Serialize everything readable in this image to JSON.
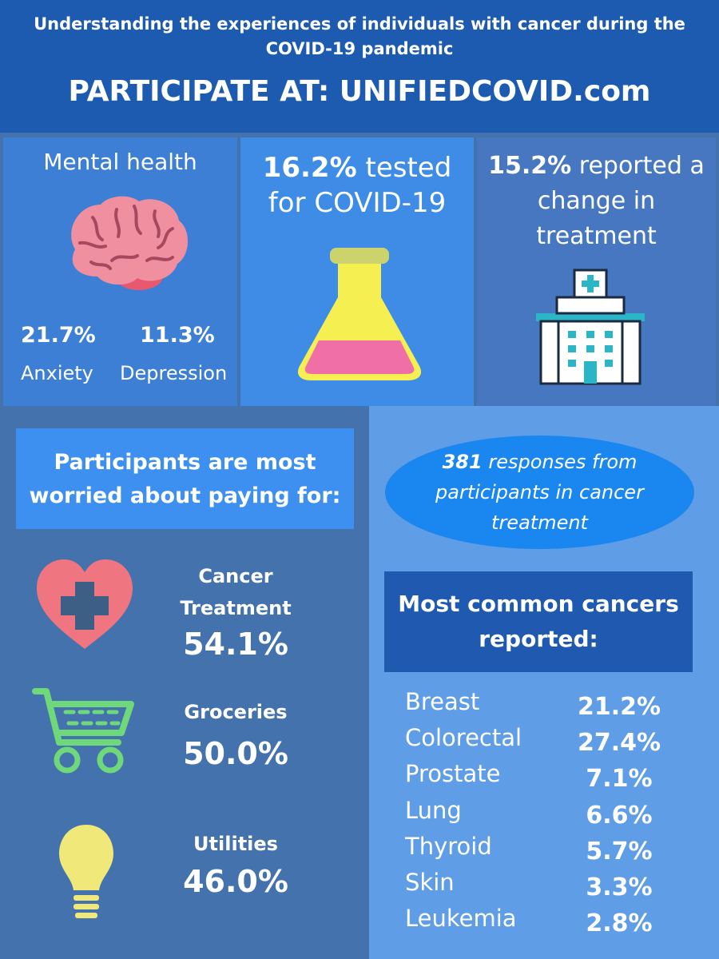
{
  "header": {
    "subtitle": "Understanding the experiences of individuals with cancer during the COVID-19 pandemic",
    "cta": "PARTICIPATE AT: UNIFIEDCOVID.com"
  },
  "mental_health": {
    "title": "Mental health",
    "anxiety_value": "21.7%",
    "anxiety_label": "Anxiety",
    "depression_value": "11.3%",
    "depression_label": "Depression"
  },
  "tested": {
    "value": "16.2%",
    "text_1": "tested",
    "text_2": "for COVID-19"
  },
  "treatment_change": {
    "value": "15.2%",
    "text_1": "reported a",
    "text_2": "change in",
    "text_3": "treatment"
  },
  "worries": {
    "heading_1": "Participants are most",
    "heading_2": "worried about paying for:",
    "items": [
      {
        "label_1": "Cancer",
        "label_2": "Treatment",
        "value": "54.1%"
      },
      {
        "label_1": "Groceries",
        "value": "50.0%"
      },
      {
        "label_1": "Utilities",
        "value": "46.0%"
      }
    ]
  },
  "responses": {
    "count": "381",
    "text_1": "responses from",
    "text_2": "participants in cancer",
    "text_3": "treatment"
  },
  "cancers": {
    "heading_1": "Most common cancers",
    "heading_2": "reported:",
    "rows": [
      {
        "name": "Breast",
        "value": "21.2%"
      },
      {
        "name": "Colorectal",
        "value": "27.4%"
      },
      {
        "name": "Prostate",
        "value": "7.1%"
      },
      {
        "name": "Lung",
        "value": "6.6%"
      },
      {
        "name": "Thyroid",
        "value": "5.7%"
      },
      {
        "name": "Skin",
        "value": "3.3%"
      },
      {
        "name": "Leukemia",
        "value": "2.8%"
      }
    ]
  },
  "colors": {
    "header": "#1c5bb0",
    "background": "#4472ad",
    "brain": "#f08fa0",
    "heart": "#ef7580",
    "cart": "#6fd87a",
    "bulb": "#f0e878",
    "flask": "#f5ef52"
  }
}
